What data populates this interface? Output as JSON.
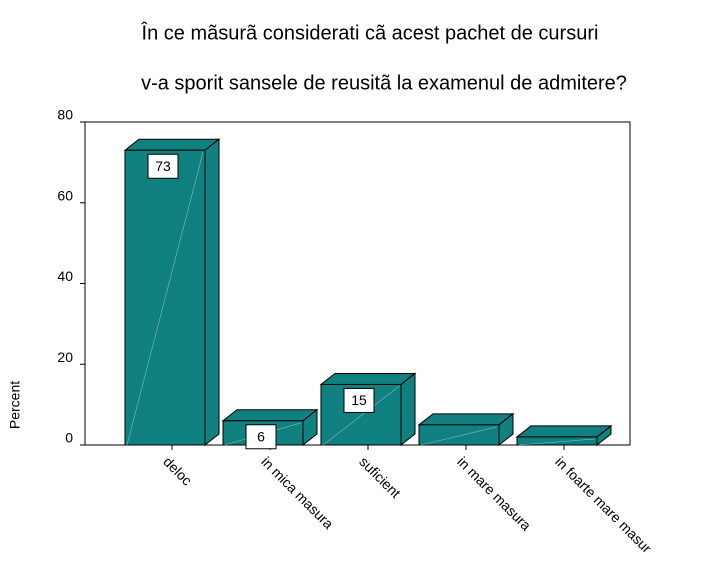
{
  "chart_data": {
    "type": "bar3d",
    "title": [
      "În ce mãsurã considerati cã acest pachet de cursuri",
      "v-a sporit sansele de reusitã la examenul de admitere?"
    ],
    "y_label": "Percent",
    "categories": [
      "deloc",
      "in mica masura",
      "suficient",
      "in mare masura",
      "in foarte mare masur"
    ],
    "values": [
      73,
      6,
      15,
      5,
      2
    ],
    "value_labels": [
      "73",
      "6",
      "15",
      null,
      null
    ],
    "color": "#108080",
    "ylim": [
      0,
      80
    ],
    "yticks": [
      0,
      20,
      40,
      60,
      80
    ]
  }
}
